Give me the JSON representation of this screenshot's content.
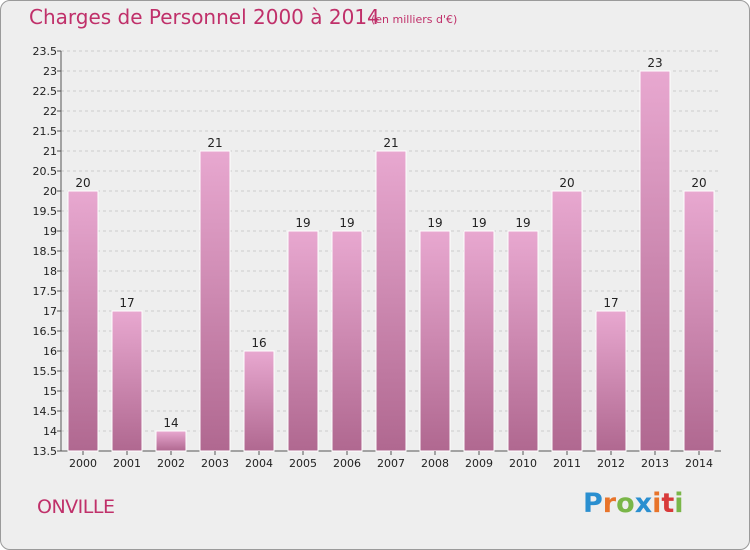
{
  "title": "Charges de Personnel 2000 à 2014",
  "subtitle": "(en milliers d'€)",
  "commune": "ONVILLE",
  "logo": {
    "letters": [
      "P",
      "r",
      "o",
      "x",
      "i",
      "t",
      "i"
    ],
    "colors": [
      "#2a8fd0",
      "#e8742a",
      "#7ab648",
      "#2a8fd0",
      "#e8742a",
      "#d83a3a",
      "#7ab648"
    ]
  },
  "colors": {
    "bar_top": "#e8a8d0",
    "bar_bottom": "#b06890",
    "title": "#c0306a",
    "plot_bg": "#eeeeee",
    "grid": "#cccccc"
  },
  "chart_data": {
    "type": "bar",
    "categories": [
      "2000",
      "2001",
      "2002",
      "2003",
      "2004",
      "2005",
      "2006",
      "2007",
      "2008",
      "2009",
      "2010",
      "2011",
      "2012",
      "2013",
      "2014"
    ],
    "values": [
      20,
      17,
      14,
      21,
      16,
      19,
      19,
      21,
      19,
      19,
      19,
      20,
      17,
      23,
      20
    ],
    "value_labels": [
      "20",
      "17",
      "14",
      "21",
      "16",
      "19",
      "19",
      "21",
      "19",
      "19",
      "19",
      "20",
      "17",
      "23",
      "20"
    ],
    "title": "Charges de Personnel 2000 à 2014",
    "xlabel": "",
    "ylabel": "",
    "ylim": [
      13.5,
      23.5
    ],
    "yticks": [
      "13.5",
      "14",
      "14.5",
      "15",
      "15.5",
      "16",
      "16.5",
      "17",
      "17.5",
      "18",
      "18.5",
      "19",
      "19.5",
      "20",
      "20.5",
      "21",
      "21.5",
      "22",
      "22.5",
      "23",
      "23.5"
    ],
    "grid": true
  }
}
